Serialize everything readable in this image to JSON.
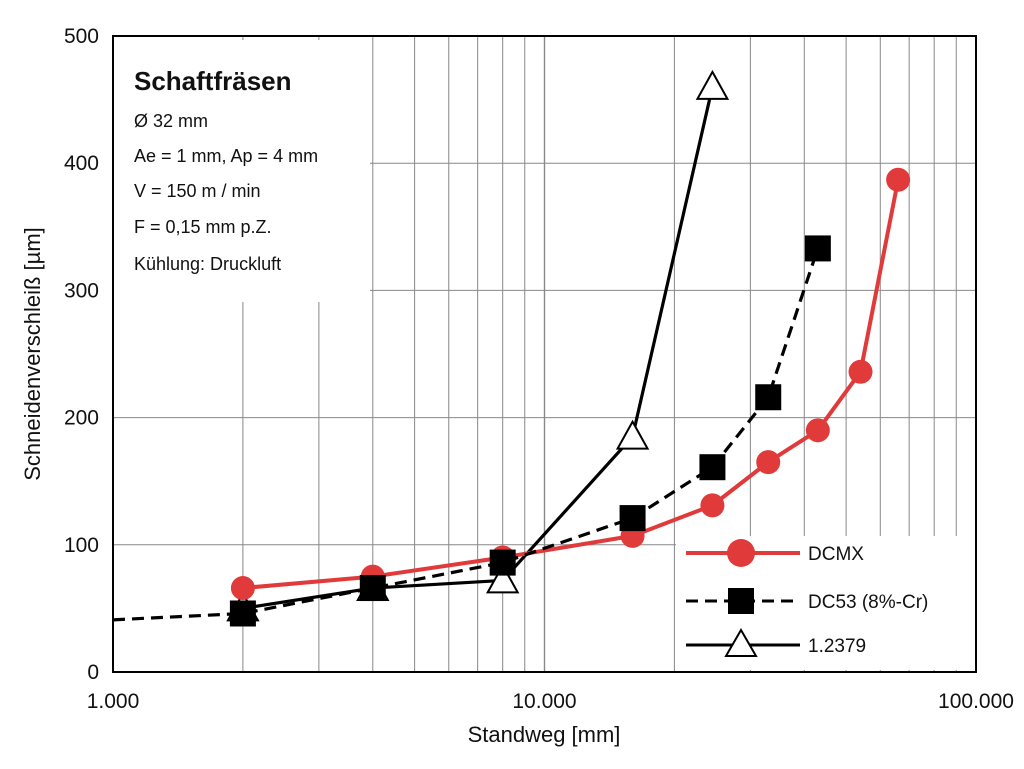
{
  "chart_data": {
    "type": "line",
    "x_scale": "log",
    "xlabel": "Standweg [mm]",
    "ylabel": "Schneidenverschleiß [µm]",
    "xlim": [
      1000,
      100000
    ],
    "ylim": [
      0,
      500
    ],
    "x_ticks": [
      {
        "value": 1000,
        "label": "1.000"
      },
      {
        "value": 10000,
        "label": "10.000"
      },
      {
        "value": 100000,
        "label": "100.000"
      }
    ],
    "y_ticks": [
      {
        "value": 0,
        "label": "0"
      },
      {
        "value": 100,
        "label": "100"
      },
      {
        "value": 200,
        "label": "200"
      },
      {
        "value": 300,
        "label": "300"
      },
      {
        "value": 400,
        "label": "400"
      },
      {
        "value": 500,
        "label": "500"
      }
    ],
    "grid": true,
    "legend_position": "bottom-right",
    "info_box": {
      "title": "Schaftfräsen",
      "lines": [
        "Ø 32 mm",
        "Ae = 1 mm, Ap = 4 mm",
        "V = 150 m / min",
        "F = 0,15 mm p.Z.",
        "Kühlung: Druckluft"
      ]
    },
    "series": [
      {
        "name": "DCMX",
        "color": "#e03a3a",
        "line_style": "solid",
        "marker": "circle",
        "points": [
          {
            "x": 2000,
            "y": 66
          },
          {
            "x": 4000,
            "y": 75
          },
          {
            "x": 8000,
            "y": 90
          },
          {
            "x": 16000,
            "y": 107
          },
          {
            "x": 24500,
            "y": 131
          },
          {
            "x": 33000,
            "y": 165
          },
          {
            "x": 43000,
            "y": 190
          },
          {
            "x": 54000,
            "y": 236
          },
          {
            "x": 66000,
            "y": 387
          }
        ]
      },
      {
        "name": "DC53 (8%-Cr)",
        "color": "#000000",
        "line_style": "dashed",
        "marker": "square",
        "lead_in": {
          "x": 1000,
          "y": 41
        },
        "points": [
          {
            "x": 2000,
            "y": 46
          },
          {
            "x": 4000,
            "y": 66
          },
          {
            "x": 8000,
            "y": 86
          },
          {
            "x": 16000,
            "y": 121
          },
          {
            "x": 24500,
            "y": 161
          },
          {
            "x": 33000,
            "y": 216
          },
          {
            "x": 43000,
            "y": 333
          }
        ]
      },
      {
        "name": "1.2379",
        "color": "#000000",
        "line_style": "solid",
        "marker": "triangle",
        "points": [
          {
            "x": 2000,
            "y": 50
          },
          {
            "x": 4000,
            "y": 66
          },
          {
            "x": 8000,
            "y": 72
          },
          {
            "x": 16000,
            "y": 185
          },
          {
            "x": 24500,
            "y": 460
          }
        ]
      }
    ]
  }
}
